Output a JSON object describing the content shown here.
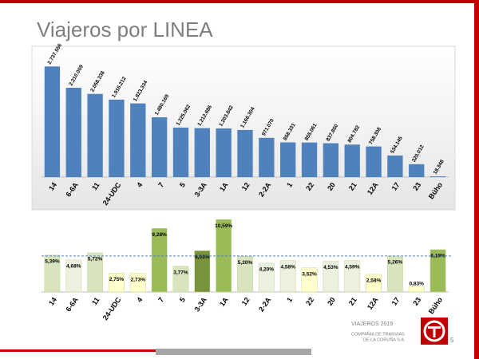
{
  "header": {
    "title": "Viajeros por LINEA"
  },
  "chart_data": [
    {
      "type": "bar",
      "categories": [
        "14",
        "6-6A",
        "11",
        "24-UDC",
        "4",
        "7",
        "5",
        "3-3A",
        "1A",
        "12",
        "2-2A",
        "1",
        "22",
        "20",
        "21",
        "12A",
        "17",
        "23",
        "Búho"
      ],
      "values": [
        2737556,
        2210009,
        2058338,
        1916212,
        1823334,
        1480169,
        1225062,
        1212686,
        1203842,
        1166304,
        971070,
        858331,
        855061,
        837850,
        804782,
        758308,
        534145,
        320012,
        18348
      ],
      "value_labels": [
        "2.737.556",
        "2.210.009",
        "2.058.338",
        "1.916.212",
        "1.823.334",
        "1.480.169",
        "1.225.062",
        "1.212.686",
        "1.203.842",
        "1.166.304",
        "971.070",
        "858.331",
        "855.061",
        "837.850",
        "804.782",
        "758.308",
        "534.145",
        "320.012",
        "18.348"
      ],
      "color": "#4f81bd",
      "ylim": [
        0,
        3000000
      ]
    },
    {
      "type": "bar",
      "categories": [
        "14",
        "6-6A",
        "11",
        "24-UDC",
        "4",
        "7",
        "5",
        "3-3A",
        "1A",
        "12",
        "2-2A",
        "1",
        "22",
        "20",
        "21",
        "12A",
        "17",
        "23",
        "Búho"
      ],
      "values": [
        5.39,
        4.68,
        5.72,
        2.75,
        2.73,
        9.28,
        3.77,
        6.03,
        10.59,
        5.2,
        4.2,
        4.58,
        3.52,
        4.53,
        4.59,
        2.58,
        5.26,
        0.83,
        6.19
      ],
      "value_labels": [
        "5,39%",
        "4,68%",
        "5,72%",
        "2,75%",
        "2,73%",
        "9,28%",
        "3,77%",
        "6,03%",
        "10,59%",
        "5,20%",
        "4,20%",
        "4,58%",
        "3,52%",
        "4,53%",
        "4,59%",
        "2,58%",
        "5,26%",
        "0,83%",
        "6,19%"
      ],
      "colors": [
        "#d7e4bd",
        "#ebf1de",
        "#d7e4bd",
        "#ffffcc",
        "#ffffcc",
        "#9bbb59",
        "#d7e4bd",
        "#77933c",
        "#9bbb59",
        "#d7e4bd",
        "#ebf1de",
        "#ebf1de",
        "#ffffcc",
        "#ebf1de",
        "#ebf1de",
        "#ffffcc",
        "#d7e4bd",
        "#ffffcc",
        "#9bbb59"
      ],
      "reference_line": 5.26,
      "ylim": [
        0,
        12
      ]
    }
  ],
  "footer": {
    "caption": "VIAJEROS 2019",
    "company": [
      "COMPAÑIA DE TRANVIAS",
      "DE LA CORUÑA S.A."
    ],
    "page": "5"
  }
}
